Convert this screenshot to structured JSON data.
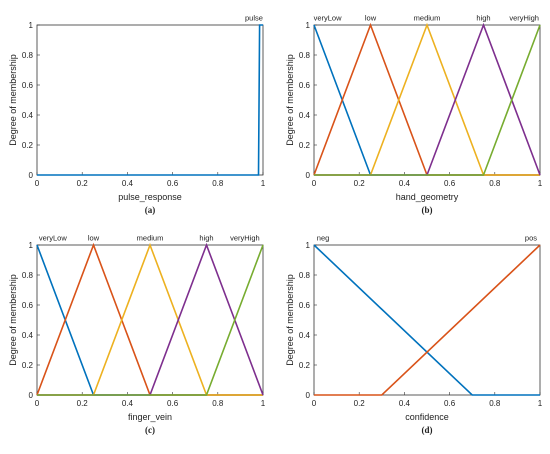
{
  "chart_data": [
    {
      "type": "line",
      "caption": "(a)",
      "xlabel": "pulse_response",
      "ylabel": "Degree of membership",
      "xlim": [
        0,
        1
      ],
      "ylim": [
        0,
        1
      ],
      "xticks": [
        "0",
        "0.2",
        "0.4",
        "0.6",
        "0.8",
        "1"
      ],
      "yticks": [
        "0",
        "0.2",
        "0.4",
        "0.6",
        "0.8",
        "1"
      ],
      "grid": false,
      "series": [
        {
          "name": "pulse",
          "color": "#0072BD",
          "points": [
            [
              0,
              0
            ],
            [
              0.98,
              0
            ],
            [
              0.985,
              1
            ],
            [
              1,
              1
            ]
          ],
          "label_at": [
            0.96,
            1.03
          ]
        }
      ]
    },
    {
      "type": "line",
      "caption": "(b)",
      "xlabel": "hand_geometry",
      "ylabel": "Degree of membership",
      "xlim": [
        0,
        1
      ],
      "ylim": [
        0,
        1
      ],
      "xticks": [
        "0",
        "0.2",
        "0.4",
        "0.6",
        "0.8",
        "1"
      ],
      "yticks": [
        "0",
        "0.2",
        "0.4",
        "0.6",
        "0.8",
        "1"
      ],
      "grid": false,
      "series": [
        {
          "name": "veryLow",
          "color": "#0072BD",
          "points": [
            [
              0,
              1
            ],
            [
              0.25,
              0
            ],
            [
              1,
              0
            ]
          ],
          "label_at": [
            0.06,
            1.03
          ]
        },
        {
          "name": "low",
          "color": "#D95319",
          "points": [
            [
              0,
              0
            ],
            [
              0.25,
              1
            ],
            [
              0.5,
              0
            ],
            [
              1,
              0
            ]
          ],
          "label_at": [
            0.25,
            1.03
          ]
        },
        {
          "name": "medium",
          "color": "#EDB120",
          "points": [
            [
              0,
              0
            ],
            [
              0.25,
              0
            ],
            [
              0.5,
              1
            ],
            [
              0.75,
              0
            ],
            [
              1,
              0
            ]
          ],
          "label_at": [
            0.5,
            1.03
          ]
        },
        {
          "name": "high",
          "color": "#7E2F8E",
          "points": [
            [
              0,
              0
            ],
            [
              0.5,
              0
            ],
            [
              0.75,
              1
            ],
            [
              1,
              0
            ]
          ],
          "label_at": [
            0.75,
            1.03
          ]
        },
        {
          "name": "veryHigh",
          "color": "#77AC30",
          "points": [
            [
              0,
              0
            ],
            [
              0.75,
              0
            ],
            [
              1,
              1
            ]
          ],
          "label_at": [
            0.93,
            1.03
          ]
        }
      ]
    },
    {
      "type": "line",
      "caption": "(c)",
      "xlabel": "finger_vein",
      "ylabel": "Degree of membership",
      "xlim": [
        0,
        1
      ],
      "ylim": [
        0,
        1
      ],
      "xticks": [
        "0",
        "0.2",
        "0.4",
        "0.6",
        "0.8",
        "1"
      ],
      "yticks": [
        "0",
        "0.2",
        "0.4",
        "0.6",
        "0.8",
        "1"
      ],
      "grid": false,
      "series": [
        {
          "name": "veryLow",
          "color": "#0072BD",
          "points": [
            [
              0,
              1
            ],
            [
              0.25,
              0
            ],
            [
              1,
              0
            ]
          ],
          "label_at": [
            0.07,
            1.03
          ]
        },
        {
          "name": "low",
          "color": "#D95319",
          "points": [
            [
              0,
              0
            ],
            [
              0.25,
              1
            ],
            [
              0.5,
              0
            ],
            [
              1,
              0
            ]
          ],
          "label_at": [
            0.25,
            1.03
          ]
        },
        {
          "name": "medium",
          "color": "#EDB120",
          "points": [
            [
              0,
              0
            ],
            [
              0.25,
              0
            ],
            [
              0.5,
              1
            ],
            [
              0.75,
              0
            ],
            [
              1,
              0
            ]
          ],
          "label_at": [
            0.5,
            1.03
          ]
        },
        {
          "name": "high",
          "color": "#7E2F8E",
          "points": [
            [
              0,
              0
            ],
            [
              0.5,
              0
            ],
            [
              0.75,
              1
            ],
            [
              1,
              0
            ]
          ],
          "label_at": [
            0.75,
            1.03
          ]
        },
        {
          "name": "veryHigh",
          "color": "#77AC30",
          "points": [
            [
              0,
              0
            ],
            [
              0.75,
              0
            ],
            [
              1,
              1
            ]
          ],
          "label_at": [
            0.92,
            1.03
          ]
        }
      ]
    },
    {
      "type": "line",
      "caption": "(d)",
      "xlabel": "confidence",
      "ylabel": "Degree of membership",
      "xlim": [
        0,
        1
      ],
      "ylim": [
        0,
        1
      ],
      "xticks": [
        "0",
        "0.2",
        "0.4",
        "0.6",
        "0.8",
        "1"
      ],
      "yticks": [
        "0",
        "0.2",
        "0.4",
        "0.6",
        "0.8",
        "1"
      ],
      "grid": false,
      "series": [
        {
          "name": "neg",
          "color": "#0072BD",
          "points": [
            [
              0,
              1
            ],
            [
              0.7,
              0
            ],
            [
              1,
              0
            ]
          ],
          "label_at": [
            0.04,
            1.03
          ]
        },
        {
          "name": "pos",
          "color": "#D95319",
          "points": [
            [
              0,
              0
            ],
            [
              0.3,
              0
            ],
            [
              1,
              1
            ]
          ],
          "label_at": [
            0.96,
            1.03
          ]
        }
      ]
    }
  ]
}
